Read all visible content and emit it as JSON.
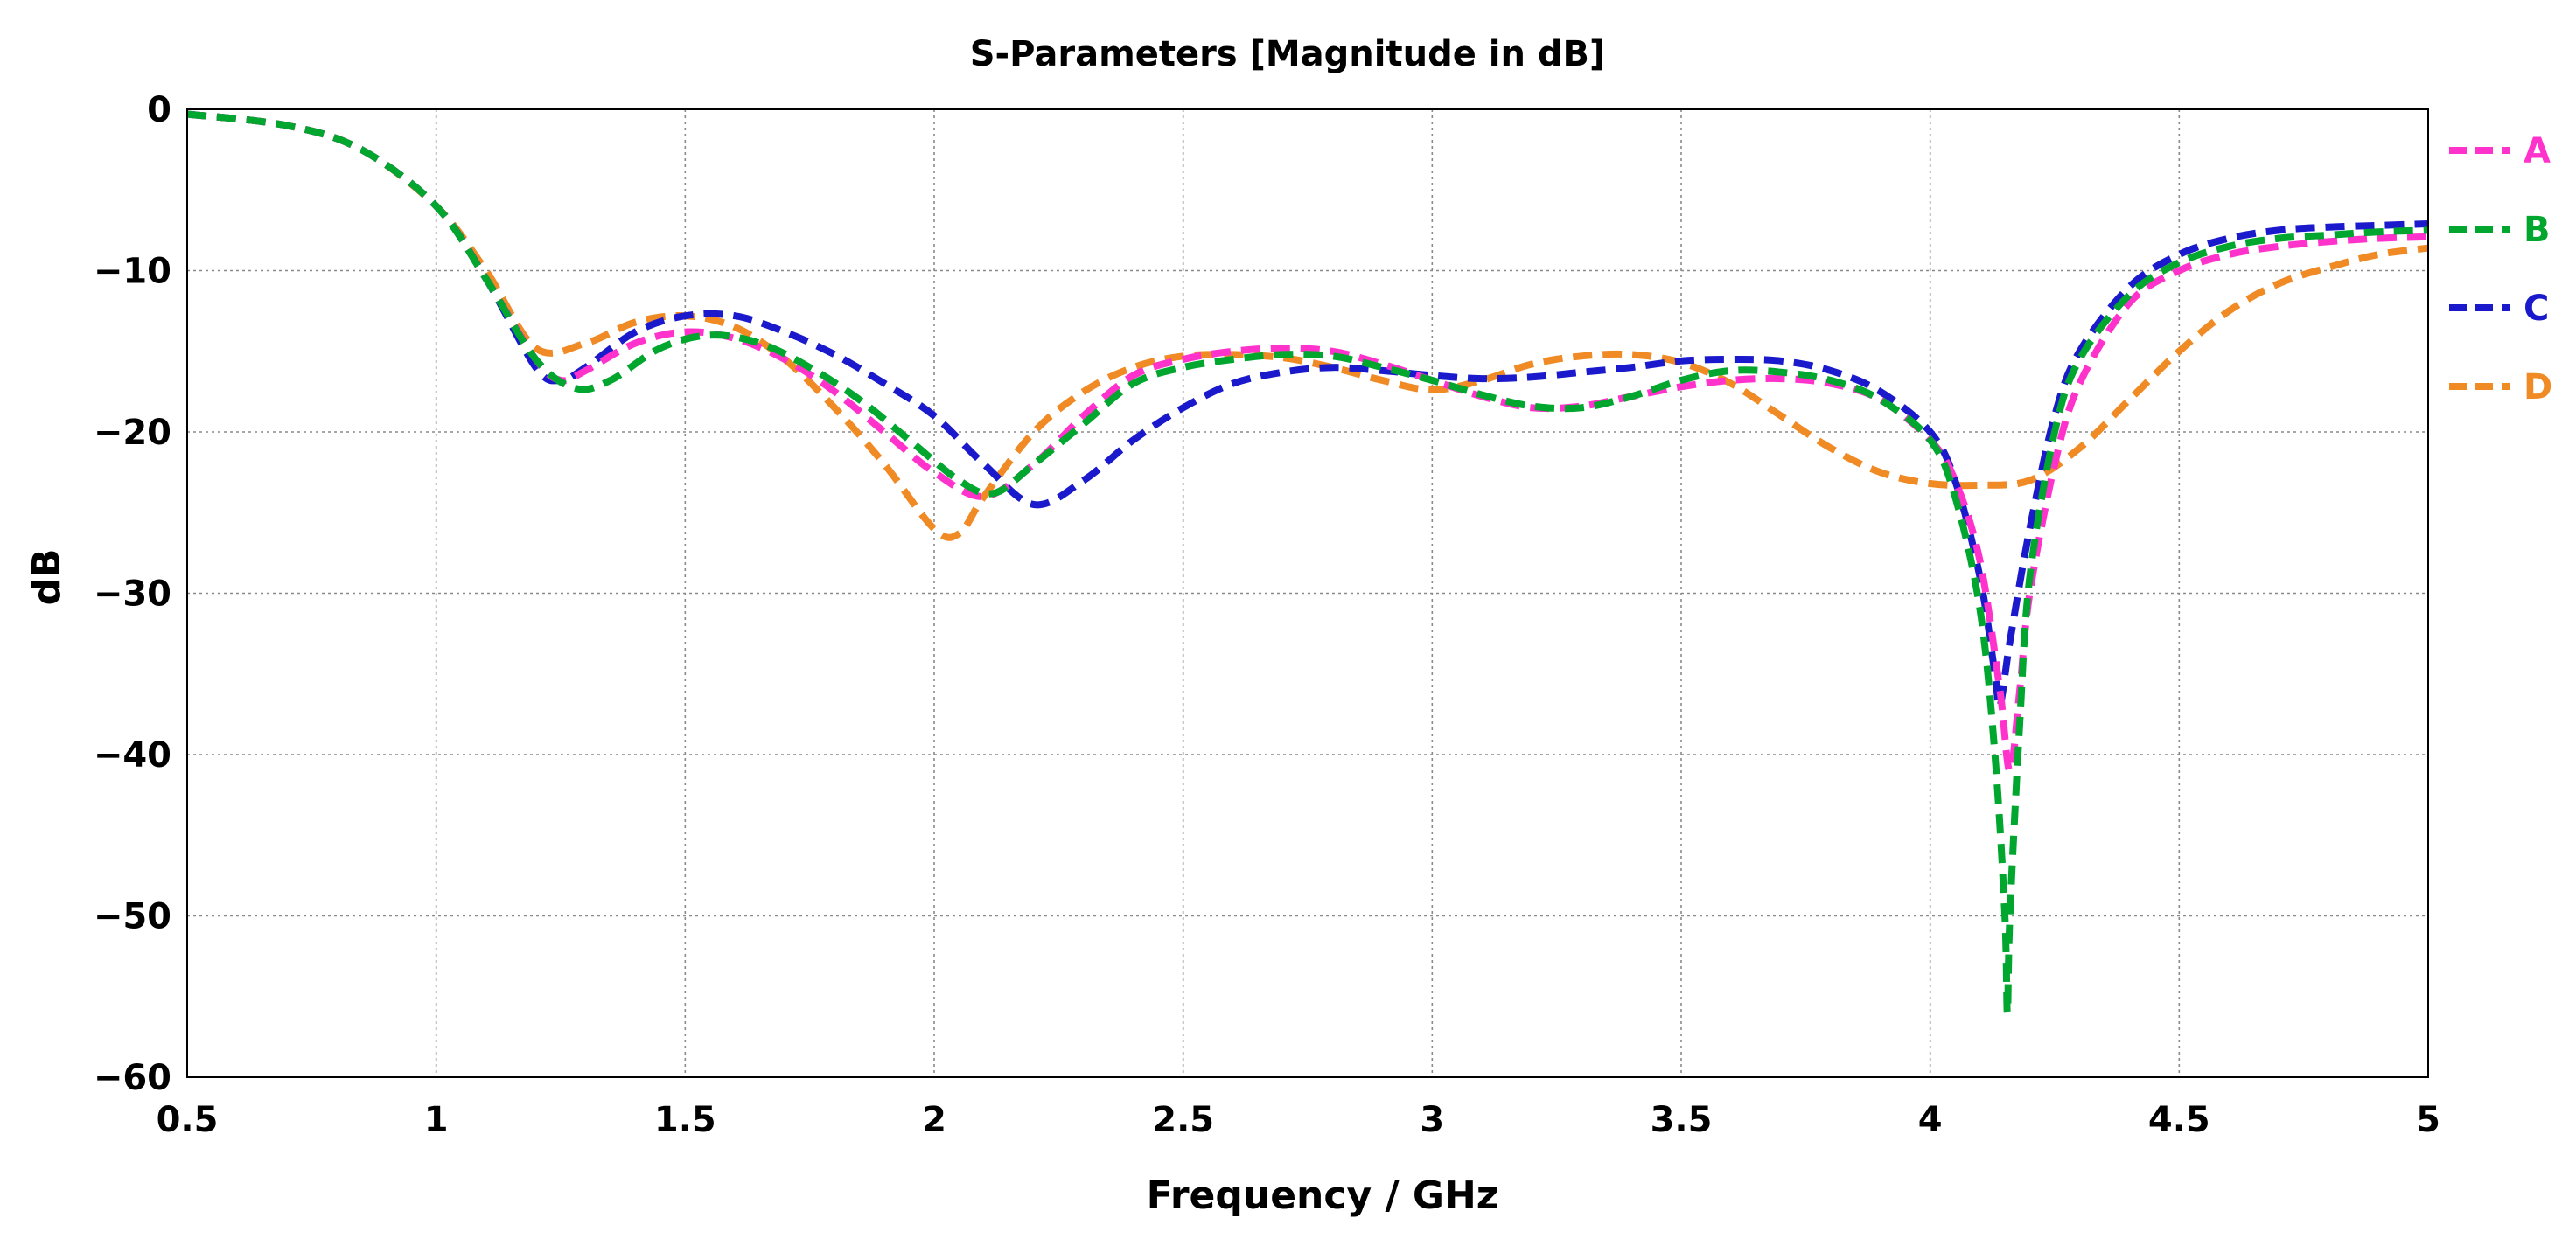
{
  "chart_data": {
    "type": "line",
    "title": "S-Parameters [Magnitude in dB]",
    "xlabel": "Frequency / GHz",
    "ylabel": "dB",
    "xlim": [
      0.5,
      5
    ],
    "ylim": [
      -60,
      0
    ],
    "grid": true,
    "legend_position": "right",
    "x_ticks": [
      0.5,
      1,
      1.5,
      2,
      2.5,
      3,
      3.5,
      4,
      4.5,
      5
    ],
    "x_tick_labels": [
      "0.5",
      "1",
      "1.5",
      "2",
      "2.5",
      "3",
      "3.5",
      "4",
      "4.5",
      "5"
    ],
    "y_ticks": [
      0,
      -10,
      -20,
      -30,
      -40,
      -50,
      -60
    ],
    "y_tick_labels": [
      "0",
      "−10",
      "−20",
      "−30",
      "−40",
      "−50",
      "−60"
    ],
    "series": [
      {
        "name": "A",
        "color": "#ff33cc",
        "points": [
          [
            0.5,
            -0.3
          ],
          [
            0.7,
            -1.0
          ],
          [
            0.85,
            -2.5
          ],
          [
            1.0,
            -6.0
          ],
          [
            1.1,
            -10.5
          ],
          [
            1.2,
            -15.5
          ],
          [
            1.25,
            -16.8
          ],
          [
            1.3,
            -16.2
          ],
          [
            1.4,
            -14.5
          ],
          [
            1.5,
            -13.8
          ],
          [
            1.6,
            -14.2
          ],
          [
            1.7,
            -15.5
          ],
          [
            1.8,
            -17.5
          ],
          [
            1.9,
            -20.0
          ],
          [
            2.0,
            -22.5
          ],
          [
            2.1,
            -24.0
          ],
          [
            2.2,
            -22.0
          ],
          [
            2.3,
            -19.0
          ],
          [
            2.4,
            -16.5
          ],
          [
            2.5,
            -15.5
          ],
          [
            2.6,
            -15.0
          ],
          [
            2.7,
            -14.8
          ],
          [
            2.8,
            -15.0
          ],
          [
            2.9,
            -15.8
          ],
          [
            3.0,
            -16.8
          ],
          [
            3.1,
            -17.8
          ],
          [
            3.2,
            -18.5
          ],
          [
            3.3,
            -18.4
          ],
          [
            3.4,
            -17.8
          ],
          [
            3.5,
            -17.2
          ],
          [
            3.6,
            -16.8
          ],
          [
            3.7,
            -16.7
          ],
          [
            3.8,
            -17.0
          ],
          [
            3.9,
            -18.0
          ],
          [
            4.0,
            -20.5
          ],
          [
            4.05,
            -23.0
          ],
          [
            4.1,
            -28.0
          ],
          [
            4.14,
            -36.0
          ],
          [
            4.16,
            -41.0
          ],
          [
            4.18,
            -36.0
          ],
          [
            4.2,
            -30.0
          ],
          [
            4.25,
            -22.0
          ],
          [
            4.3,
            -17.0
          ],
          [
            4.4,
            -12.0
          ],
          [
            4.5,
            -10.0
          ],
          [
            4.6,
            -9.0
          ],
          [
            4.7,
            -8.5
          ],
          [
            4.8,
            -8.2
          ],
          [
            4.9,
            -8.0
          ],
          [
            5.0,
            -7.9
          ]
        ]
      },
      {
        "name": "B",
        "color": "#00a62e",
        "points": [
          [
            0.5,
            -0.3
          ],
          [
            0.7,
            -1.0
          ],
          [
            0.85,
            -2.5
          ],
          [
            1.0,
            -6.0
          ],
          [
            1.1,
            -10.5
          ],
          [
            1.2,
            -15.5
          ],
          [
            1.28,
            -17.3
          ],
          [
            1.35,
            -16.8
          ],
          [
            1.45,
            -14.8
          ],
          [
            1.55,
            -14.0
          ],
          [
            1.65,
            -14.5
          ],
          [
            1.75,
            -16.0
          ],
          [
            1.85,
            -18.0
          ],
          [
            1.95,
            -20.5
          ],
          [
            2.05,
            -23.0
          ],
          [
            2.12,
            -23.8
          ],
          [
            2.2,
            -22.0
          ],
          [
            2.3,
            -19.5
          ],
          [
            2.4,
            -17.0
          ],
          [
            2.5,
            -16.0
          ],
          [
            2.6,
            -15.5
          ],
          [
            2.7,
            -15.2
          ],
          [
            2.8,
            -15.3
          ],
          [
            2.9,
            -16.0
          ],
          [
            3.0,
            -16.8
          ],
          [
            3.1,
            -17.7
          ],
          [
            3.2,
            -18.4
          ],
          [
            3.3,
            -18.5
          ],
          [
            3.4,
            -17.8
          ],
          [
            3.5,
            -16.8
          ],
          [
            3.6,
            -16.2
          ],
          [
            3.7,
            -16.3
          ],
          [
            3.8,
            -16.8
          ],
          [
            3.9,
            -18.0
          ],
          [
            4.0,
            -20.5
          ],
          [
            4.05,
            -24.0
          ],
          [
            4.1,
            -31.0
          ],
          [
            4.13,
            -40.0
          ],
          [
            4.15,
            -50.0
          ],
          [
            4.155,
            -56.0
          ],
          [
            4.16,
            -50.0
          ],
          [
            4.18,
            -38.0
          ],
          [
            4.2,
            -29.0
          ],
          [
            4.25,
            -20.0
          ],
          [
            4.3,
            -15.5
          ],
          [
            4.4,
            -11.5
          ],
          [
            4.5,
            -9.5
          ],
          [
            4.6,
            -8.5
          ],
          [
            4.7,
            -8.0
          ],
          [
            4.8,
            -7.8
          ],
          [
            4.9,
            -7.6
          ],
          [
            5.0,
            -7.5
          ]
        ]
      },
      {
        "name": "C",
        "color": "#1a1acc",
        "points": [
          [
            0.5,
            -0.3
          ],
          [
            0.7,
            -1.0
          ],
          [
            0.85,
            -2.5
          ],
          [
            1.0,
            -6.0
          ],
          [
            1.1,
            -10.5
          ],
          [
            1.2,
            -16.0
          ],
          [
            1.25,
            -16.8
          ],
          [
            1.3,
            -16.0
          ],
          [
            1.4,
            -13.8
          ],
          [
            1.5,
            -12.8
          ],
          [
            1.6,
            -12.8
          ],
          [
            1.7,
            -13.8
          ],
          [
            1.8,
            -15.2
          ],
          [
            1.9,
            -17.0
          ],
          [
            2.0,
            -19.0
          ],
          [
            2.1,
            -22.0
          ],
          [
            2.2,
            -24.5
          ],
          [
            2.3,
            -23.0
          ],
          [
            2.4,
            -20.5
          ],
          [
            2.5,
            -18.5
          ],
          [
            2.6,
            -17.0
          ],
          [
            2.7,
            -16.3
          ],
          [
            2.8,
            -16.0
          ],
          [
            2.9,
            -16.2
          ],
          [
            3.0,
            -16.5
          ],
          [
            3.1,
            -16.7
          ],
          [
            3.2,
            -16.6
          ],
          [
            3.3,
            -16.3
          ],
          [
            3.4,
            -16.0
          ],
          [
            3.5,
            -15.6
          ],
          [
            3.6,
            -15.5
          ],
          [
            3.7,
            -15.6
          ],
          [
            3.8,
            -16.2
          ],
          [
            3.9,
            -17.5
          ],
          [
            4.0,
            -20.0
          ],
          [
            4.05,
            -23.0
          ],
          [
            4.1,
            -29.0
          ],
          [
            4.13,
            -35.0
          ],
          [
            4.14,
            -37.0
          ],
          [
            4.16,
            -33.0
          ],
          [
            4.2,
            -26.0
          ],
          [
            4.25,
            -19.0
          ],
          [
            4.3,
            -15.0
          ],
          [
            4.4,
            -11.0
          ],
          [
            4.5,
            -9.0
          ],
          [
            4.6,
            -8.0
          ],
          [
            4.7,
            -7.5
          ],
          [
            4.8,
            -7.3
          ],
          [
            4.9,
            -7.2
          ],
          [
            5.0,
            -7.1
          ]
        ]
      },
      {
        "name": "D",
        "color": "#f08a24",
        "points": [
          [
            0.5,
            -0.3
          ],
          [
            0.7,
            -1.0
          ],
          [
            0.85,
            -2.5
          ],
          [
            1.0,
            -6.0
          ],
          [
            1.1,
            -10.0
          ],
          [
            1.2,
            -14.8
          ],
          [
            1.3,
            -14.5
          ],
          [
            1.4,
            -13.2
          ],
          [
            1.5,
            -12.8
          ],
          [
            1.6,
            -13.5
          ],
          [
            1.7,
            -15.5
          ],
          [
            1.8,
            -18.5
          ],
          [
            1.9,
            -22.0
          ],
          [
            2.0,
            -26.0
          ],
          [
            2.05,
            -26.3
          ],
          [
            2.1,
            -24.0
          ],
          [
            2.2,
            -20.0
          ],
          [
            2.3,
            -17.5
          ],
          [
            2.4,
            -16.0
          ],
          [
            2.5,
            -15.3
          ],
          [
            2.6,
            -15.2
          ],
          [
            2.7,
            -15.4
          ],
          [
            2.8,
            -16.0
          ],
          [
            2.9,
            -16.8
          ],
          [
            3.0,
            -17.4
          ],
          [
            3.1,
            -16.8
          ],
          [
            3.2,
            -15.8
          ],
          [
            3.3,
            -15.3
          ],
          [
            3.4,
            -15.2
          ],
          [
            3.5,
            -15.7
          ],
          [
            3.6,
            -17.0
          ],
          [
            3.7,
            -19.0
          ],
          [
            3.8,
            -21.0
          ],
          [
            3.9,
            -22.5
          ],
          [
            4.0,
            -23.2
          ],
          [
            4.1,
            -23.3
          ],
          [
            4.2,
            -23.0
          ],
          [
            4.3,
            -21.0
          ],
          [
            4.4,
            -18.0
          ],
          [
            4.5,
            -15.0
          ],
          [
            4.6,
            -12.5
          ],
          [
            4.7,
            -10.8
          ],
          [
            4.8,
            -9.8
          ],
          [
            4.9,
            -9.0
          ],
          [
            5.0,
            -8.6
          ]
        ]
      }
    ]
  }
}
